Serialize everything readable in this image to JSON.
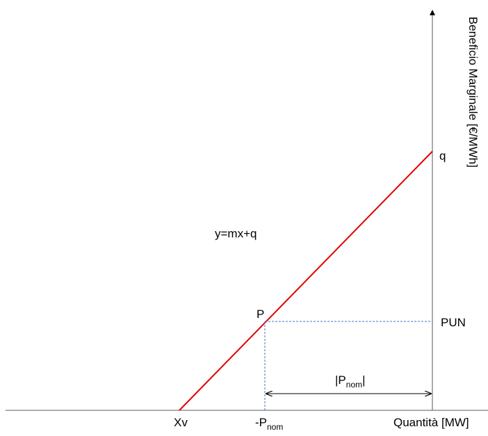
{
  "axes": {
    "x_label": "Quantità [MW]",
    "y_label": "Beneficio Marginale [€/MWh]"
  },
  "line": {
    "equation": "y=mx+q",
    "color": "#e00000"
  },
  "points": {
    "intercept_label": "q",
    "p_label": "P",
    "pun_label": "PUN",
    "xv_label": "Xv",
    "neg_pnom_prefix": "-P",
    "neg_pnom_sub": "nom"
  },
  "dimension": {
    "abs_open": "|P",
    "abs_sub": "nom",
    "abs_close": "|"
  },
  "colors": {
    "axis": "#595959",
    "guide": "#4472c4",
    "dimension": "#000000"
  }
}
